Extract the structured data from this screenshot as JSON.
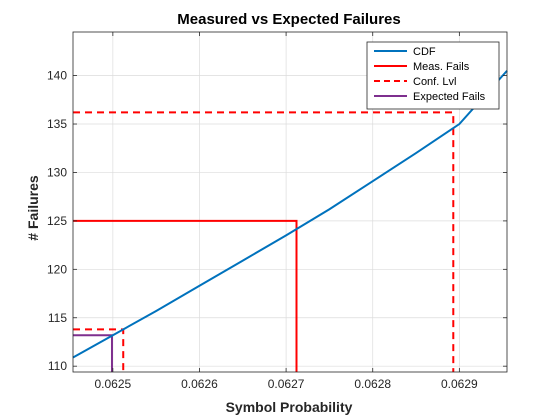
{
  "chart_data": {
    "type": "line",
    "title": "Measured vs Expected Failures",
    "xlabel": "Symbol Probability",
    "ylabel": "# Failures",
    "xlim": [
      0.062454,
      0.062955
    ],
    "ylim": [
      109.4,
      144.5
    ],
    "xticks": [
      0.0625,
      0.0626,
      0.0627,
      0.0628,
      0.0629
    ],
    "xtick_labels": [
      "0.0625",
      "0.0626",
      "0.0627",
      "0.0628",
      "0.0629"
    ],
    "yticks": [
      110,
      115,
      120,
      125,
      130,
      135,
      140
    ],
    "ytick_labels": [
      "110",
      "115",
      "120",
      "125",
      "130",
      "135",
      "140"
    ],
    "grid": true,
    "legend_position": "top-right",
    "series": [
      {
        "name": "CDF",
        "color": "#0072BD",
        "style": "solid",
        "points": [
          [
            0.062454,
            110.9
          ],
          [
            0.0625,
            113.2
          ],
          [
            0.06255,
            115.7
          ],
          [
            0.0626,
            118.3
          ],
          [
            0.06265,
            120.9
          ],
          [
            0.0627,
            123.5
          ],
          [
            0.06275,
            126.2
          ],
          [
            0.0628,
            129.1
          ],
          [
            0.06285,
            132.0
          ],
          [
            0.0629,
            135.0
          ],
          [
            0.062955,
            140.5
          ]
        ]
      },
      {
        "name": "Meas. Fails",
        "color": "#FF0000",
        "style": "solid",
        "points": [
          [
            0.062454,
            125.0
          ],
          [
            0.062712,
            125.0
          ],
          [
            0.062712,
            109.4
          ]
        ]
      },
      {
        "name": "Conf. Lvl",
        "color": "#FF0000",
        "style": "dashed",
        "segments": [
          [
            [
              0.062454,
              136.2
            ],
            [
              0.062893,
              136.2
            ],
            [
              0.062893,
              109.4
            ]
          ],
          [
            [
              0.062454,
              113.8
            ],
            [
              0.062512,
              113.8
            ],
            [
              0.062512,
              109.4
            ]
          ]
        ]
      },
      {
        "name": "Expected Fails",
        "color": "#7E2F8E",
        "style": "solid",
        "points": [
          [
            0.062454,
            113.2
          ],
          [
            0.062499,
            113.2
          ],
          [
            0.062499,
            109.4
          ]
        ]
      }
    ]
  }
}
